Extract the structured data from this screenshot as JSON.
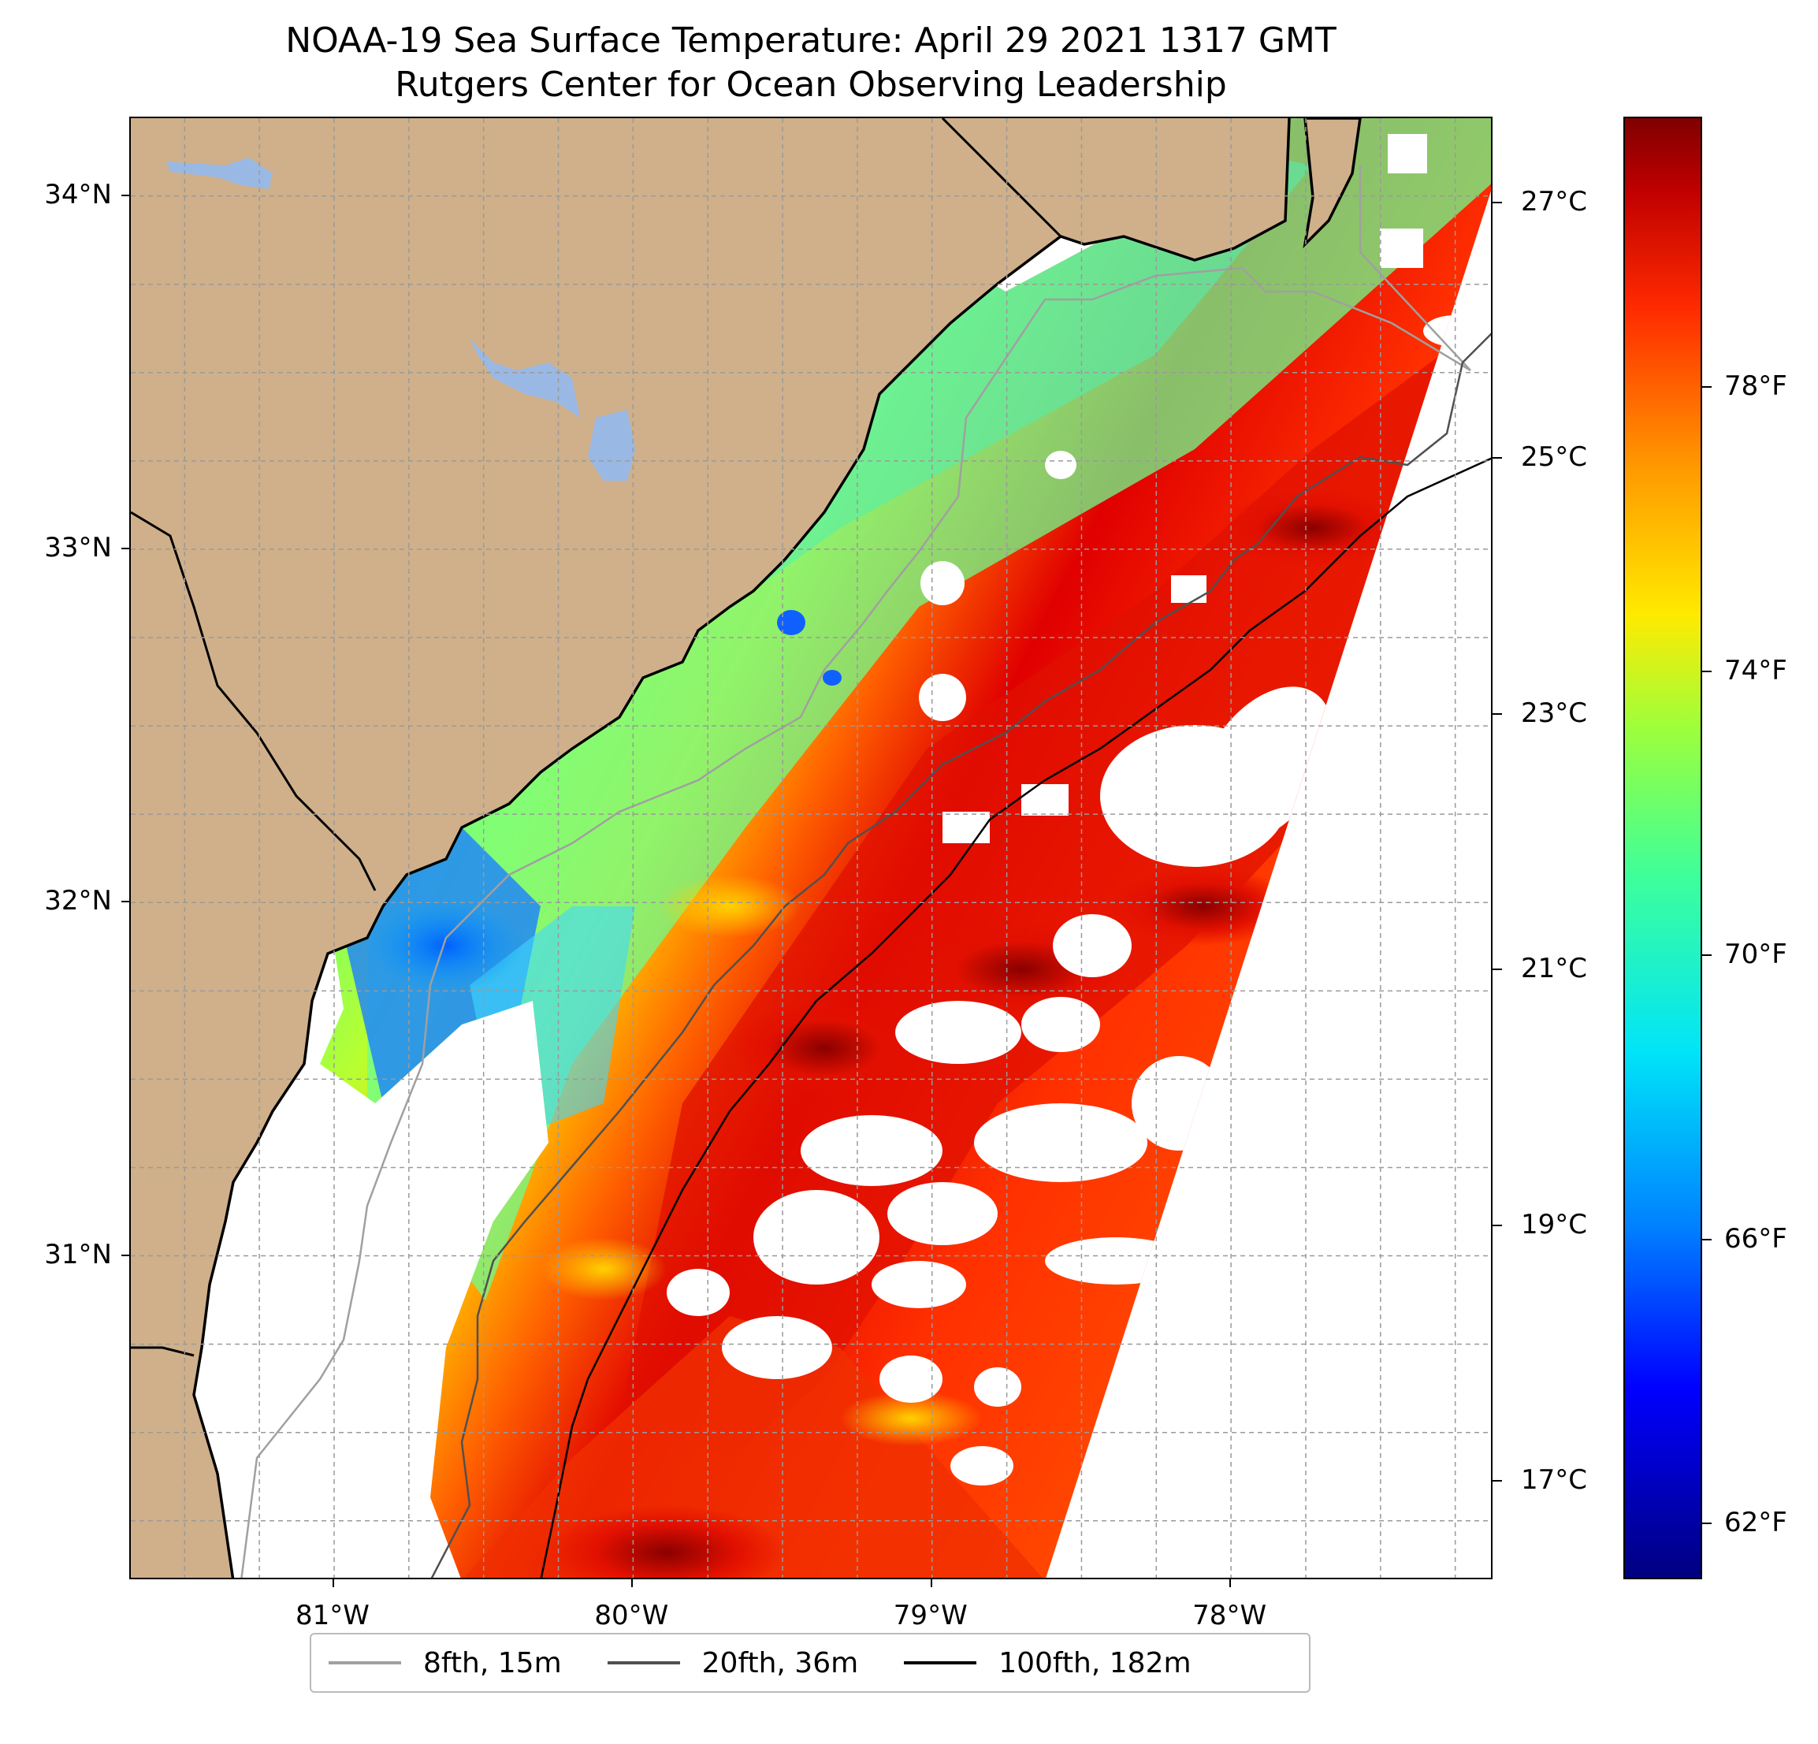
{
  "title": {
    "line1": "NOAA-19 Sea Surface Temperature: April 29 2021 1317 GMT",
    "line2": "Rutgers Center for Ocean Observing Leadership"
  },
  "colors": {
    "land": "#cfb08a",
    "lake": "#9ab8e4",
    "coastline": "#000000",
    "grid": "#9a9a9a",
    "no_data": "#ffffff",
    "isobath_15m": "#a0a0a0",
    "isobath_36m": "#505050",
    "isobath_182m": "#000000"
  },
  "map": {
    "lon_range": [
      -81.68,
      -77.12
    ],
    "lat_range": [
      30.08,
      34.22
    ],
    "lat_ticks": [
      {
        "value": 34,
        "label": "34°N"
      },
      {
        "value": 33,
        "label": "33°N"
      },
      {
        "value": 32,
        "label": "32°N"
      },
      {
        "value": 31,
        "label": "31°N"
      }
    ],
    "lon_ticks": [
      {
        "value": -81,
        "label": "81°W"
      },
      {
        "value": -80,
        "label": "80°W"
      },
      {
        "value": -79,
        "label": "79°W"
      },
      {
        "value": -78,
        "label": "78°W"
      }
    ]
  },
  "colorbar": {
    "colormap": "jet",
    "fahrenheit_range": [
      61.2,
      81.8
    ],
    "celsius_ticks": [
      "27°C",
      "25°C",
      "23°C",
      "21°C",
      "19°C",
      "17°C"
    ],
    "celsius_values": [
      27,
      25,
      23,
      21,
      19,
      17
    ],
    "fahrenheit_ticks": [
      "78°F",
      "74°F",
      "70°F",
      "66°F",
      "62°F"
    ],
    "fahrenheit_values": [
      78,
      74,
      70,
      66,
      62
    ]
  },
  "legend": {
    "items": [
      {
        "label": "8fth, 15m",
        "color": "#a0a0a0"
      },
      {
        "label": "20fth, 36m",
        "color": "#505050"
      },
      {
        "label": "100fth, 182m",
        "color": "#000000"
      }
    ]
  }
}
